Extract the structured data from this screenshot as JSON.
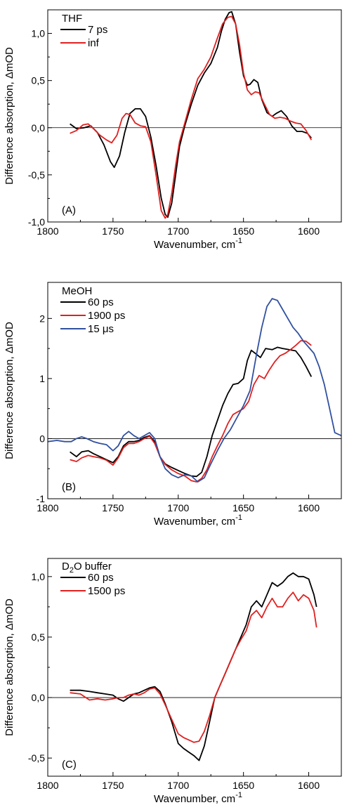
{
  "chart_data": [
    {
      "type": "line",
      "panel_label": "(A)",
      "legend_title": "THF",
      "xlabel": "Wavenumber, cm",
      "xlabel_superscript": "-1",
      "ylabel": "Difference absorption, ΔmOD",
      "xlim": [
        1800,
        1575
      ],
      "ylim": [
        -1.0,
        1.25
      ],
      "xticks": [
        1800,
        1750,
        1700,
        1650,
        1600
      ],
      "yticks": [
        -1.0,
        -0.5,
        0.0,
        0.5,
        1.0
      ],
      "ytick_labels": [
        "-1,0",
        "-0,5",
        "0,0",
        "0,5",
        "1,0"
      ],
      "zero_line": true,
      "legend_position": "top-left",
      "series": [
        {
          "name": "7 ps",
          "color": "#000000",
          "x": [
            1783,
            1778,
            1772,
            1767,
            1762,
            1757,
            1752,
            1749,
            1745,
            1741,
            1737,
            1733,
            1729,
            1725,
            1721,
            1717,
            1713,
            1710,
            1708,
            1705,
            1702,
            1699,
            1695,
            1690,
            1685,
            1680,
            1675,
            1670,
            1667,
            1664,
            1661,
            1659,
            1656,
            1653,
            1650,
            1647,
            1645,
            1642,
            1639,
            1636,
            1632,
            1628,
            1625,
            1621,
            1617,
            1613,
            1609,
            1605,
            1601,
            1598
          ],
          "y": [
            0.04,
            -0.01,
            0.0,
            0.02,
            -0.05,
            -0.18,
            -0.36,
            -0.42,
            -0.3,
            -0.05,
            0.15,
            0.2,
            0.2,
            0.12,
            -0.1,
            -0.4,
            -0.75,
            -0.92,
            -0.95,
            -0.8,
            -0.5,
            -0.2,
            0.02,
            0.25,
            0.45,
            0.58,
            0.68,
            0.85,
            1.02,
            1.15,
            1.22,
            1.23,
            1.1,
            0.8,
            0.55,
            0.45,
            0.46,
            0.51,
            0.48,
            0.3,
            0.16,
            0.12,
            0.15,
            0.18,
            0.12,
            0.02,
            -0.04,
            -0.04,
            -0.06,
            -0.11
          ]
        },
        {
          "name": "inf",
          "color": "#e02020",
          "x": [
            1783,
            1778,
            1773,
            1769,
            1765,
            1760,
            1755,
            1751,
            1747,
            1743,
            1740,
            1737,
            1733,
            1729,
            1725,
            1721,
            1717,
            1713,
            1710,
            1708,
            1705,
            1702,
            1699,
            1695,
            1690,
            1685,
            1680,
            1675,
            1670,
            1666,
            1662,
            1659,
            1656,
            1653,
            1650,
            1647,
            1644,
            1641,
            1638,
            1634,
            1630,
            1626,
            1622,
            1618,
            1614,
            1610,
            1606,
            1602,
            1598
          ],
          "y": [
            -0.06,
            -0.03,
            0.03,
            0.04,
            -0.01,
            -0.08,
            -0.13,
            -0.16,
            -0.08,
            0.1,
            0.15,
            0.14,
            0.05,
            0.02,
            0.01,
            -0.15,
            -0.5,
            -0.88,
            -0.96,
            -0.92,
            -0.7,
            -0.4,
            -0.15,
            0.05,
            0.3,
            0.52,
            0.62,
            0.75,
            0.95,
            1.1,
            1.17,
            1.18,
            1.1,
            0.88,
            0.58,
            0.4,
            0.35,
            0.38,
            0.37,
            0.25,
            0.14,
            0.1,
            0.11,
            0.1,
            0.07,
            0.05,
            0.04,
            -0.03,
            -0.13
          ]
        }
      ]
    },
    {
      "type": "line",
      "panel_label": "(B)",
      "legend_title": "MeOH",
      "xlabel": "Wavenumber, cm",
      "xlabel_superscript": "-1",
      "ylabel": "Difference absorption, ΔmOD",
      "xlim": [
        1800,
        1575
      ],
      "ylim": [
        -1.0,
        2.6
      ],
      "xticks": [
        1800,
        1750,
        1700,
        1650,
        1600
      ],
      "yticks": [
        -1,
        0,
        1,
        2
      ],
      "ytick_labels": [
        "-1",
        "0",
        "1",
        "2"
      ],
      "zero_line": true,
      "legend_position": "top-left",
      "series": [
        {
          "name": "60 ps",
          "color": "#000000",
          "x": [
            1783,
            1778,
            1774,
            1769,
            1765,
            1760,
            1755,
            1750,
            1746,
            1742,
            1738,
            1734,
            1730,
            1726,
            1722,
            1718,
            1714,
            1710,
            1705,
            1700,
            1695,
            1690,
            1686,
            1682,
            1678,
            1674,
            1670,
            1666,
            1662,
            1658,
            1654,
            1650,
            1647,
            1644,
            1641,
            1637,
            1633,
            1628,
            1624,
            1620,
            1615,
            1610,
            1606,
            1602,
            1598
          ],
          "y": [
            -0.22,
            -0.3,
            -0.22,
            -0.2,
            -0.25,
            -0.3,
            -0.35,
            -0.4,
            -0.3,
            -0.12,
            -0.05,
            -0.05,
            -0.03,
            0.02,
            0.05,
            -0.05,
            -0.3,
            -0.42,
            -0.48,
            -0.53,
            -0.58,
            -0.62,
            -0.63,
            -0.56,
            -0.3,
            0.05,
            0.3,
            0.55,
            0.75,
            0.9,
            0.92,
            1.0,
            1.3,
            1.47,
            1.42,
            1.35,
            1.5,
            1.48,
            1.52,
            1.5,
            1.48,
            1.46,
            1.35,
            1.2,
            1.03
          ]
        },
        {
          "name": "1900 ps",
          "color": "#e02020",
          "x": [
            1783,
            1778,
            1774,
            1769,
            1765,
            1760,
            1755,
            1750,
            1746,
            1742,
            1738,
            1734,
            1730,
            1726,
            1722,
            1718,
            1714,
            1710,
            1705,
            1700,
            1695,
            1690,
            1686,
            1682,
            1678,
            1674,
            1670,
            1666,
            1662,
            1658,
            1654,
            1650,
            1646,
            1642,
            1638,
            1634,
            1630,
            1626,
            1622,
            1618,
            1614,
            1610,
            1606,
            1602,
            1598
          ],
          "y": [
            -0.35,
            -0.38,
            -0.32,
            -0.28,
            -0.3,
            -0.32,
            -0.36,
            -0.44,
            -0.32,
            -0.15,
            -0.08,
            -0.08,
            -0.05,
            0.0,
            0.04,
            -0.08,
            -0.3,
            -0.43,
            -0.52,
            -0.58,
            -0.62,
            -0.7,
            -0.72,
            -0.66,
            -0.52,
            -0.3,
            -0.12,
            0.05,
            0.25,
            0.4,
            0.45,
            0.5,
            0.62,
            0.9,
            1.05,
            1.0,
            1.15,
            1.28,
            1.38,
            1.42,
            1.48,
            1.55,
            1.63,
            1.62,
            1.55
          ]
        },
        {
          "name": "15 μs",
          "color": "#3050a0",
          "x": [
            1800,
            1793,
            1787,
            1782,
            1778,
            1774,
            1770,
            1765,
            1760,
            1755,
            1750,
            1746,
            1742,
            1738,
            1734,
            1730,
            1726,
            1722,
            1718,
            1714,
            1710,
            1705,
            1700,
            1695,
            1690,
            1685,
            1680,
            1675,
            1670,
            1665,
            1660,
            1655,
            1650,
            1645,
            1640,
            1636,
            1632,
            1628,
            1624,
            1620,
            1616,
            1612,
            1608,
            1604,
            1600,
            1596,
            1592,
            1588,
            1584,
            1580,
            1575
          ],
          "y": [
            -0.05,
            -0.03,
            -0.05,
            -0.05,
            0.0,
            0.03,
            0.0,
            -0.05,
            -0.08,
            -0.1,
            -0.2,
            -0.12,
            0.05,
            0.12,
            0.05,
            0.0,
            0.05,
            0.1,
            0.0,
            -0.3,
            -0.5,
            -0.6,
            -0.65,
            -0.6,
            -0.62,
            -0.72,
            -0.65,
            -0.42,
            -0.2,
            0.0,
            0.15,
            0.35,
            0.55,
            0.8,
            1.4,
            1.85,
            2.2,
            2.33,
            2.3,
            2.15,
            2.0,
            1.85,
            1.75,
            1.62,
            1.52,
            1.42,
            1.2,
            0.9,
            0.5,
            0.1,
            0.05
          ]
        }
      ]
    },
    {
      "type": "line",
      "panel_label": "(C)",
      "legend_title_main": "D",
      "legend_title_sub": "2",
      "legend_title_rest": "O buffer",
      "xlabel": "Wavenumber, cm",
      "xlabel_superscript": "-1",
      "ylabel": "Difference absorption, ΔmOD",
      "xlim": [
        1800,
        1575
      ],
      "ylim": [
        -0.65,
        1.15
      ],
      "xticks": [
        1800,
        1750,
        1700,
        1650,
        1600
      ],
      "yticks": [
        -0.5,
        0.0,
        0.5,
        1.0
      ],
      "ytick_labels": [
        "-0,5",
        "0,0",
        "0,5",
        "1,0"
      ],
      "zero_line": true,
      "legend_position": "top-left",
      "series": [
        {
          "name": "60 ps",
          "color": "#000000",
          "x": [
            1783,
            1775,
            1768,
            1762,
            1756,
            1750,
            1746,
            1742,
            1738,
            1734,
            1730,
            1726,
            1722,
            1718,
            1714,
            1710,
            1705,
            1700,
            1696,
            1692,
            1688,
            1684,
            1680,
            1676,
            1672,
            1668,
            1664,
            1660,
            1656,
            1652,
            1648,
            1644,
            1640,
            1636,
            1632,
            1628,
            1624,
            1620,
            1616,
            1612,
            1608,
            1604,
            1600,
            1596,
            1594
          ],
          "y": [
            0.06,
            0.06,
            0.05,
            0.04,
            0.03,
            0.02,
            -0.01,
            -0.03,
            0.0,
            0.03,
            0.04,
            0.06,
            0.08,
            0.09,
            0.05,
            -0.05,
            -0.2,
            -0.38,
            -0.42,
            -0.45,
            -0.48,
            -0.52,
            -0.4,
            -0.2,
            0.0,
            0.1,
            0.2,
            0.3,
            0.4,
            0.5,
            0.6,
            0.75,
            0.8,
            0.75,
            0.85,
            0.95,
            0.92,
            0.95,
            1.0,
            1.03,
            1.0,
            1.0,
            0.98,
            0.85,
            0.75
          ]
        },
        {
          "name": "1500 ps",
          "color": "#e02020",
          "x": [
            1783,
            1775,
            1768,
            1762,
            1756,
            1750,
            1746,
            1742,
            1738,
            1734,
            1730,
            1726,
            1722,
            1718,
            1714,
            1710,
            1705,
            1700,
            1696,
            1692,
            1688,
            1684,
            1680,
            1676,
            1672,
            1668,
            1664,
            1660,
            1656,
            1652,
            1648,
            1644,
            1640,
            1636,
            1632,
            1628,
            1624,
            1620,
            1616,
            1612,
            1608,
            1604,
            1600,
            1596,
            1594
          ],
          "y": [
            0.04,
            0.03,
            -0.02,
            -0.01,
            -0.02,
            -0.01,
            0.0,
            0.0,
            0.02,
            0.03,
            0.02,
            0.04,
            0.07,
            0.08,
            0.03,
            -0.06,
            -0.18,
            -0.3,
            -0.33,
            -0.35,
            -0.37,
            -0.36,
            -0.28,
            -0.15,
            0.0,
            0.1,
            0.2,
            0.3,
            0.4,
            0.48,
            0.55,
            0.68,
            0.72,
            0.66,
            0.75,
            0.82,
            0.75,
            0.75,
            0.82,
            0.87,
            0.8,
            0.85,
            0.82,
            0.72,
            0.58
          ]
        }
      ]
    }
  ]
}
